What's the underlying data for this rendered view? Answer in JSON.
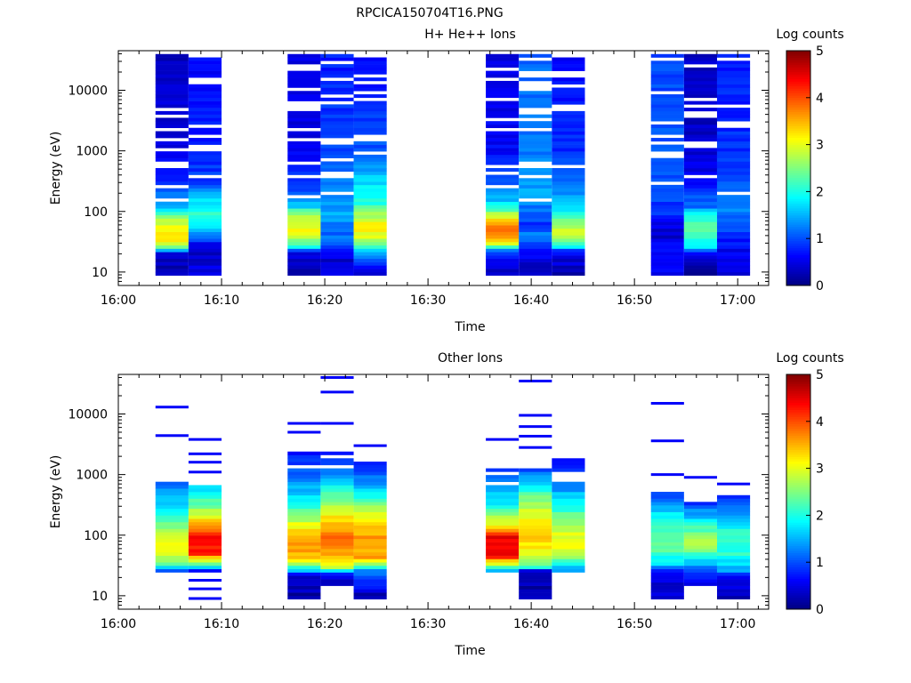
{
  "page_title": "RPCICA150704T16.PNG",
  "chart_data": [
    {
      "type": "heatmap",
      "title": "H+ He++ Ions",
      "xlabel": "Time",
      "ylabel": "Energy (eV)",
      "x_tick_labels": [
        "16:00",
        "16:10",
        "16:20",
        "16:30",
        "16:40",
        "16:50",
        "17:00"
      ],
      "y_tick_labels": [
        "10",
        "100",
        "1000",
        "10000"
      ],
      "y_scale": "log",
      "ylim": [
        6,
        45000
      ],
      "xlim": [
        "16:00",
        "17:03"
      ],
      "colorbar": {
        "label": "Log counts",
        "range": [
          0,
          5
        ],
        "tick_labels": [
          "0",
          "1",
          "2",
          "3",
          "4",
          "5"
        ],
        "colormap": "jet"
      },
      "columns": [
        {
          "start": "16:03.6",
          "end": "16:06.8",
          "max_energy": 38000,
          "profile": [
            [
              9,
              0.2
            ],
            [
              15,
              0.3
            ],
            [
              20,
              0.5
            ],
            [
              26,
              2.4
            ],
            [
              35,
              3.2
            ],
            [
              55,
              3.0
            ],
            [
              80,
              2.6
            ],
            [
              110,
              1.7
            ],
            [
              180,
              1.2
            ],
            [
              400,
              0.6
            ],
            [
              1500,
              0.4
            ],
            [
              38000,
              0.3
            ]
          ]
        },
        {
          "start": "16:06.8",
          "end": "16:10.0",
          "max_energy": 40000,
          "profile": [
            [
              9,
              0.7
            ],
            [
              15,
              0.3
            ],
            [
              28,
              0.5
            ],
            [
              40,
              1.3
            ],
            [
              80,
              2.1
            ],
            [
              150,
              1.8
            ],
            [
              300,
              0.9
            ],
            [
              1500,
              0.7
            ],
            [
              40000,
              0.6
            ]
          ]
        },
        {
          "start": "16:16.4",
          "end": "16:19.6",
          "max_energy": 38000,
          "profile": [
            [
              9,
              0.2
            ],
            [
              20,
              0.4
            ],
            [
              26,
              1.8
            ],
            [
              40,
              3.1
            ],
            [
              60,
              3.1
            ],
            [
              90,
              2.8
            ],
            [
              120,
              1.6
            ],
            [
              250,
              0.9
            ],
            [
              1000,
              0.5
            ],
            [
              38000,
              0.4
            ]
          ]
        },
        {
          "start": "16:19.6",
          "end": "16:22.8",
          "max_energy": 40000,
          "profile": [
            [
              9,
              0.7
            ],
            [
              15,
              0.3
            ],
            [
              22,
              0.6
            ],
            [
              35,
              1.1
            ],
            [
              60,
              1.3
            ],
            [
              100,
              1.5
            ],
            [
              300,
              1.2
            ],
            [
              1500,
              0.9
            ],
            [
              40000,
              0.7
            ]
          ]
        },
        {
          "start": "16:22.8",
          "end": "16:26.0",
          "max_energy": 34000,
          "profile": [
            [
              9,
              0.2
            ],
            [
              26,
              2.0
            ],
            [
              40,
              3.0
            ],
            [
              60,
              3.2
            ],
            [
              90,
              2.6
            ],
            [
              150,
              2.0
            ],
            [
              400,
              1.6
            ],
            [
              1000,
              1.0
            ],
            [
              34000,
              0.6
            ]
          ]
        },
        {
          "start": "16:35.6",
          "end": "16:38.8",
          "max_energy": 38000,
          "profile": [
            [
              10,
              0.3
            ],
            [
              16,
              0.5
            ],
            [
              24,
              1.5
            ],
            [
              32,
              3.4
            ],
            [
              45,
              3.8
            ],
            [
              70,
              3.6
            ],
            [
              100,
              2.4
            ],
            [
              150,
              1.6
            ],
            [
              300,
              1.0
            ],
            [
              1000,
              0.6
            ],
            [
              38000,
              0.4
            ]
          ]
        },
        {
          "start": "16:38.8",
          "end": "16:42.0",
          "max_energy": 40000,
          "profile": [
            [
              9,
              0.3
            ],
            [
              14,
              0.4
            ],
            [
              26,
              0.9
            ],
            [
              40,
              1.3
            ],
            [
              60,
              0.8
            ],
            [
              90,
              1.1
            ],
            [
              200,
              1.4
            ],
            [
              1000,
              1.2
            ],
            [
              40000,
              1.1
            ]
          ]
        },
        {
          "start": "16:42.0",
          "end": "16:45.2",
          "max_energy": 34000,
          "profile": [
            [
              9,
              0.2
            ],
            [
              22,
              0.6
            ],
            [
              28,
              2.2
            ],
            [
              45,
              2.9
            ],
            [
              70,
              2.6
            ],
            [
              110,
              1.7
            ],
            [
              250,
              1.2
            ],
            [
              1000,
              0.8
            ],
            [
              34000,
              0.6
            ]
          ]
        },
        {
          "start": "16:51.6",
          "end": "16:54.8",
          "max_energy": 40000,
          "profile": [
            [
              9,
              0.6
            ],
            [
              25,
              0.7
            ],
            [
              40,
              0.3
            ],
            [
              60,
              0.5
            ],
            [
              100,
              0.9
            ],
            [
              300,
              1.0
            ],
            [
              1000,
              1.0
            ],
            [
              40000,
              0.9
            ]
          ]
        },
        {
          "start": "16:54.8",
          "end": "16:58.0",
          "max_energy": 40000,
          "profile": [
            [
              9,
              0.2
            ],
            [
              20,
              0.5
            ],
            [
              26,
              1.8
            ],
            [
              45,
              2.4
            ],
            [
              80,
              2.1
            ],
            [
              120,
              1.2
            ],
            [
              400,
              0.5
            ],
            [
              2000,
              0.3
            ],
            [
              40000,
              0.3
            ]
          ]
        },
        {
          "start": "16:58.0",
          "end": "17:01.2",
          "max_energy": 38000,
          "profile": [
            [
              9,
              0.4
            ],
            [
              25,
              0.6
            ],
            [
              50,
              0.9
            ],
            [
              100,
              1.3
            ],
            [
              250,
              1.0
            ],
            [
              1000,
              0.8
            ],
            [
              38000,
              0.7
            ]
          ]
        }
      ]
    },
    {
      "type": "heatmap",
      "title": "Other Ions",
      "xlabel": "Time",
      "ylabel": "Energy (eV)",
      "x_tick_labels": [
        "16:00",
        "16:10",
        "16:20",
        "16:30",
        "16:40",
        "16:50",
        "17:00"
      ],
      "y_tick_labels": [
        "10",
        "100",
        "1000",
        "10000"
      ],
      "y_scale": "log",
      "ylim": [
        6,
        45000
      ],
      "xlim": [
        "16:00",
        "17:03"
      ],
      "colorbar": {
        "label": "Log counts",
        "range": [
          0,
          5
        ],
        "tick_labels": [
          "0",
          "1",
          "2",
          "3",
          "4",
          "5"
        ],
        "colormap": "jet"
      },
      "columns": [
        {
          "start": "16:03.6",
          "end": "16:06.8",
          "max_energy": 800,
          "profile": [
            [
              26,
              1.2
            ],
            [
              35,
              2.5
            ],
            [
              55,
              3.0
            ],
            [
              90,
              3.0
            ],
            [
              150,
              2.5
            ],
            [
              300,
              1.8
            ],
            [
              800,
              1.0
            ]
          ],
          "sparse": [
            4400,
            13000
          ]
        },
        {
          "start": "16:06.8",
          "end": "16:10.0",
          "max_energy": 700,
          "profile": [
            [
              26,
              0.8
            ],
            [
              32,
              2.0
            ],
            [
              50,
              4.2
            ],
            [
              90,
              4.5
            ],
            [
              150,
              3.6
            ],
            [
              300,
              2.5
            ],
            [
              700,
              1.6
            ]
          ],
          "sparse": [
            9,
            13,
            18,
            1100,
            1600,
            2200,
            3800
          ]
        },
        {
          "start": "16:16.4",
          "end": "16:19.6",
          "max_energy": 2400,
          "profile": [
            [
              9,
              0.2
            ],
            [
              22,
              0.4
            ],
            [
              28,
              2.0
            ],
            [
              45,
              3.5
            ],
            [
              80,
              3.7
            ],
            [
              150,
              3.0
            ],
            [
              400,
              1.8
            ],
            [
              1000,
              1.1
            ],
            [
              2400,
              0.6
            ]
          ],
          "sparse": [
            5000,
            7000
          ]
        },
        {
          "start": "16:19.6",
          "end": "16:22.8",
          "max_energy": 2500,
          "profile": [
            [
              15,
              0.3
            ],
            [
              22,
              0.5
            ],
            [
              28,
              2.6
            ],
            [
              45,
              3.5
            ],
            [
              90,
              3.8
            ],
            [
              200,
              3.2
            ],
            [
              500,
              2.2
            ],
            [
              1000,
              1.2
            ],
            [
              2500,
              0.6
            ]
          ],
          "sparse": [
            7000,
            23000,
            40000
          ]
        },
        {
          "start": "16:22.8",
          "end": "16:26.0",
          "max_energy": 1800,
          "profile": [
            [
              10,
              0.2
            ],
            [
              26,
              1.4
            ],
            [
              40,
              3.5
            ],
            [
              80,
              3.7
            ],
            [
              150,
              3.4
            ],
            [
              400,
              2.2
            ],
            [
              800,
              1.2
            ],
            [
              1800,
              0.7
            ]
          ],
          "sparse": [
            3000
          ]
        },
        {
          "start": "16:35.6",
          "end": "16:38.8",
          "max_energy": 1300,
          "profile": [
            [
              26,
              1.4
            ],
            [
              32,
              2.6
            ],
            [
              45,
              4.3
            ],
            [
              90,
              4.5
            ],
            [
              140,
              3.2
            ],
            [
              300,
              2.0
            ],
            [
              700,
              1.2
            ],
            [
              1300,
              0.7
            ]
          ],
          "sparse": [
            3800
          ]
        },
        {
          "start": "16:38.8",
          "end": "16:42.0",
          "max_energy": 1300,
          "profile": [
            [
              9,
              0.2
            ],
            [
              26,
              0.3
            ],
            [
              30,
              2.2
            ],
            [
              45,
              3.0
            ],
            [
              90,
              3.4
            ],
            [
              200,
              3.1
            ],
            [
              500,
              2.2
            ],
            [
              1300,
              0.8
            ]
          ],
          "sparse": [
            2800,
            4300,
            6200,
            9500,
            35000
          ]
        },
        {
          "start": "16:42.0",
          "end": "16:45.2",
          "max_energy": 1900,
          "profile": [
            [
              26,
              1.3
            ],
            [
              35,
              2.2
            ],
            [
              60,
              3.1
            ],
            [
              120,
              2.9
            ],
            [
              300,
              2.0
            ],
            [
              800,
              1.1
            ],
            [
              1900,
              0.6
            ]
          ],
          "sparse": []
        },
        {
          "start": "16:51.6",
          "end": "16:54.8",
          "max_energy": 600,
          "profile": [
            [
              9,
              0.5
            ],
            [
              15,
              0.3
            ],
            [
              26,
              0.8
            ],
            [
              35,
              1.8
            ],
            [
              60,
              2.3
            ],
            [
              150,
              2.1
            ],
            [
              300,
              1.5
            ],
            [
              600,
              0.6
            ]
          ],
          "sparse": [
            1000,
            3600,
            15000
          ]
        },
        {
          "start": "16:54.8",
          "end": "16:58.0",
          "max_energy": 420,
          "profile": [
            [
              15,
              0.3
            ],
            [
              26,
              1.0
            ],
            [
              40,
              1.8
            ],
            [
              70,
              2.8
            ],
            [
              120,
              2.3
            ],
            [
              250,
              1.3
            ],
            [
              420,
              0.5
            ]
          ],
          "sparse": [
            900
          ]
        },
        {
          "start": "16:58.0",
          "end": "17:01.2",
          "max_energy": 460,
          "profile": [
            [
              9,
              0.3
            ],
            [
              20,
              0.5
            ],
            [
              26,
              1.4
            ],
            [
              50,
              2.1
            ],
            [
              100,
              2.2
            ],
            [
              200,
              1.6
            ],
            [
              460,
              0.7
            ]
          ],
          "sparse": [
            700
          ]
        }
      ]
    }
  ]
}
